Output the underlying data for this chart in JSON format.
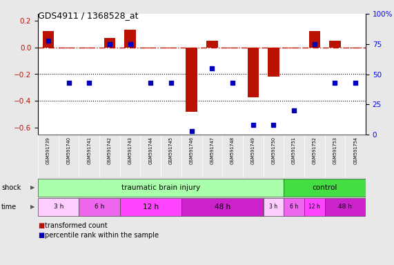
{
  "title": "GDS4911 / 1368528_at",
  "samples": [
    "GSM591739",
    "GSM591740",
    "GSM591741",
    "GSM591742",
    "GSM591743",
    "GSM591744",
    "GSM591745",
    "GSM591746",
    "GSM591747",
    "GSM591748",
    "GSM591749",
    "GSM591750",
    "GSM591751",
    "GSM591752",
    "GSM591753",
    "GSM591754"
  ],
  "bar_values": [
    0.12,
    -0.005,
    -0.005,
    0.07,
    0.13,
    -0.005,
    -0.005,
    -0.48,
    0.05,
    -0.005,
    -0.37,
    -0.22,
    -0.005,
    0.12,
    0.05,
    -0.005
  ],
  "percentile_values": [
    78,
    43,
    43,
    75,
    75,
    43,
    43,
    3,
    55,
    43,
    8,
    8,
    20,
    75,
    43,
    43
  ],
  "shock_groups": [
    {
      "label": "traumatic brain injury",
      "start": 0,
      "end": 11,
      "color": "#aaffaa"
    },
    {
      "label": "control",
      "start": 12,
      "end": 15,
      "color": "#44dd44"
    }
  ],
  "time_groups": [
    {
      "label": "3 h",
      "start": 0,
      "end": 1,
      "color": "#ffccff"
    },
    {
      "label": "6 h",
      "start": 2,
      "end": 3,
      "color": "#ee66ee"
    },
    {
      "label": "12 h",
      "start": 4,
      "end": 6,
      "color": "#ff44ff"
    },
    {
      "label": "48 h",
      "start": 7,
      "end": 10,
      "color": "#cc22cc"
    },
    {
      "label": "3 h",
      "start": 11,
      "end": 11,
      "color": "#ffccff"
    },
    {
      "label": "6 h",
      "start": 12,
      "end": 12,
      "color": "#ee66ee"
    },
    {
      "label": "12 h",
      "start": 13,
      "end": 13,
      "color": "#ff44ff"
    },
    {
      "label": "48 h",
      "start": 14,
      "end": 15,
      "color": "#cc22cc"
    }
  ],
  "ylim_left": [
    -0.65,
    0.25
  ],
  "yticks_left": [
    0.2,
    0.0,
    -0.2,
    -0.4,
    -0.6
  ],
  "bar_color": "#bb1100",
  "dot_color": "#0000bb",
  "bg_color": "#e8e8e8",
  "plot_bg": "#ffffff",
  "label_bg": "#cccccc"
}
